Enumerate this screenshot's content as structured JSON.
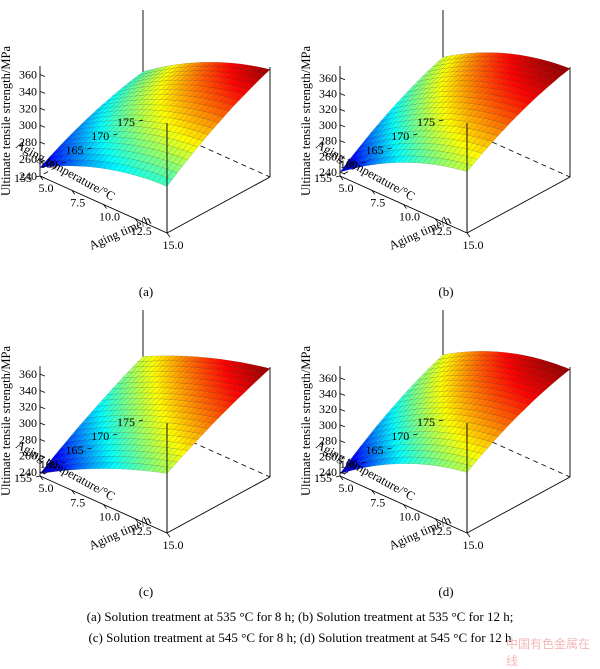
{
  "chart_data": [
    {
      "type": "surface",
      "panel_label": "(a)",
      "xlabel": "Aging time/h",
      "ylabel": "Aging temperature/°C",
      "zlabel": "Ultimate tensile strength/MPa",
      "x_ticks": [
        "5.0",
        "7.5",
        "10.0",
        "12.5",
        "15.0"
      ],
      "y_ticks": [
        "155",
        "160",
        "165",
        "170",
        "175"
      ],
      "z_ticks": [
        "240",
        "260",
        "280",
        "300",
        "320",
        "340",
        "360"
      ],
      "xlim": [
        5,
        15
      ],
      "ylim": [
        155,
        175
      ],
      "zlim": [
        240,
        370
      ],
      "corner_values": {
        "t5_T155": 250,
        "t15_T155": 295,
        "t5_T175": 297,
        "t15_T175": 367
      },
      "curvature": 10,
      "colormap": "jet"
    },
    {
      "type": "surface",
      "panel_label": "(b)",
      "xlabel": "Aging time/h",
      "ylabel": "Aging temperature/°C",
      "zlabel": "Ultimate tensile strength/MPa",
      "x_ticks": [
        "5.0",
        "7.5",
        "10.0",
        "12.5",
        "15.0"
      ],
      "y_ticks": [
        "155",
        "160",
        "165",
        "170",
        "175"
      ],
      "z_ticks": [
        "240",
        "260",
        "280",
        "300",
        "320",
        "340",
        "360"
      ],
      "xlim": [
        5,
        15
      ],
      "ylim": [
        155,
        175
      ],
      "zlim": [
        235,
        375
      ],
      "corner_values": {
        "t5_T155": 240,
        "t15_T155": 313,
        "t5_T175": 315,
        "t15_T175": 373
      },
      "curvature": 12,
      "colormap": "jet"
    },
    {
      "type": "surface",
      "panel_label": "(c)",
      "xlabel": "Aging time/h",
      "ylabel": "Aging temperature/°C",
      "zlabel": "Ultimate tensile strength/MPa",
      "x_ticks": [
        "5.0",
        "7.5",
        "10.0",
        "12.5",
        "15.0"
      ],
      "y_ticks": [
        "155",
        "160",
        "165",
        "170",
        "175"
      ],
      "z_ticks": [
        "240",
        "260",
        "280",
        "300",
        "320",
        "340",
        "360"
      ],
      "xlim": [
        5,
        15
      ],
      "ylim": [
        155,
        175
      ],
      "zlim": [
        235,
        370
      ],
      "corner_values": {
        "t5_T155": 238,
        "t15_T155": 308,
        "t5_T175": 313,
        "t15_T175": 368
      },
      "curvature": 6,
      "colormap": "jet"
    },
    {
      "type": "surface",
      "panel_label": "(d)",
      "xlabel": "Aging time/h",
      "ylabel": "Aging temperature/°C",
      "zlabel": "Ultimate tensile strength/MPa",
      "x_ticks": [
        "5.0",
        "7.5",
        "10.0",
        "12.5",
        "15.0"
      ],
      "y_ticks": [
        "155",
        "160",
        "165",
        "170",
        "175"
      ],
      "z_ticks": [
        "240",
        "260",
        "280",
        "300",
        "320",
        "340",
        "360"
      ],
      "xlim": [
        5,
        15
      ],
      "ylim": [
        155,
        175
      ],
      "zlim": [
        235,
        375
      ],
      "corner_values": {
        "t5_T155": 238,
        "t15_T155": 312,
        "t5_T175": 318,
        "t15_T175": 372
      },
      "curvature": 12,
      "colormap": "jet"
    }
  ],
  "caption": {
    "line1": "(a) Solution treatment at 535 °C for 8 h; (b) Solution treatment at 535 °C for 12 h;",
    "line2": "(c) Solution treatment at 545 °C for 8 h; (d) Solution treatment at 545 °C for 12 h"
  },
  "watermark": "中国有色金属在线"
}
